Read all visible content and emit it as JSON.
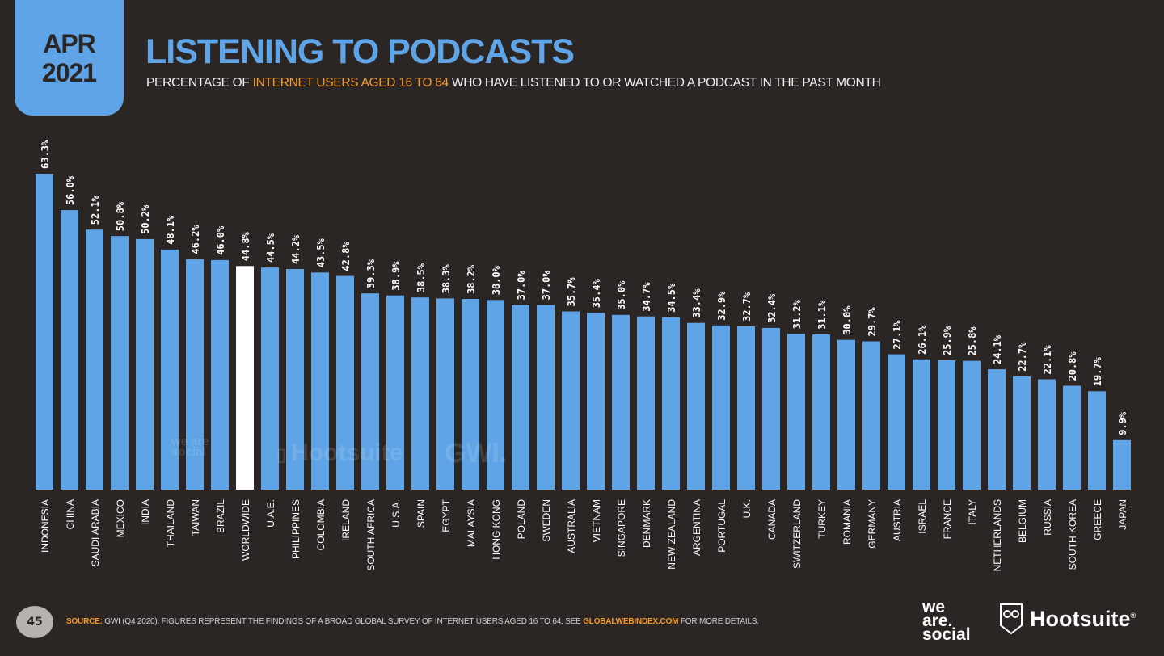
{
  "header": {
    "date_month": "APR",
    "date_year": "2021",
    "title": "LISTENING TO PODCASTS",
    "subtitle_pre": "PERCENTAGE OF ",
    "subtitle_highlight": "INTERNET USERS AGED 16 TO 64",
    "subtitle_post": " WHO HAVE LISTENED TO OR WATCHED A PODCAST IN THE PAST MONTH"
  },
  "chart_data": {
    "type": "bar",
    "title": "LISTENING TO PODCASTS",
    "subtitle": "PERCENTAGE OF INTERNET USERS AGED 16 TO 64 WHO HAVE LISTENED TO OR WATCHED A PODCAST IN THE PAST MONTH",
    "xlabel": "",
    "ylabel": "",
    "ylim": [
      0,
      63.3
    ],
    "value_suffix": "%",
    "highlight_category": "WORLDWIDE",
    "colors": {
      "bar": "#5fa4e6",
      "highlight": "#ffffff",
      "label": "#ffffff"
    },
    "categories": [
      "INDONESIA",
      "CHINA",
      "SAUDI ARABIA",
      "MEXICO",
      "INDIA",
      "THAILAND",
      "TAIWAN",
      "BRAZIL",
      "WORLDWIDE",
      "U.A.E.",
      "PHILIPPINES",
      "COLOMBIA",
      "IRELAND",
      "SOUTH AFRICA",
      "U.S.A.",
      "SPAIN",
      "EGYPT",
      "MALAYSIA",
      "HONG KONG",
      "POLAND",
      "SWEDEN",
      "AUSTRALIA",
      "VIETNAM",
      "SINGAPORE",
      "DENMARK",
      "NEW ZEALAND",
      "ARGENTINA",
      "PORTUGAL",
      "U.K.",
      "CANADA",
      "SWITZERLAND",
      "TURKEY",
      "ROMANIA",
      "GERMANY",
      "AUSTRIA",
      "ISRAEL",
      "FRANCE",
      "ITALY",
      "NETHERLANDS",
      "BELGIUM",
      "RUSSIA",
      "SOUTH KOREA",
      "GREECE",
      "JAPAN"
    ],
    "values": [
      63.3,
      56.0,
      52.1,
      50.8,
      50.2,
      48.1,
      46.2,
      46.0,
      44.8,
      44.5,
      44.2,
      43.5,
      42.8,
      39.3,
      38.9,
      38.5,
      38.3,
      38.2,
      38.0,
      37.0,
      37.0,
      35.7,
      35.4,
      35.0,
      34.7,
      34.5,
      33.4,
      32.9,
      32.7,
      32.4,
      31.2,
      31.1,
      30.0,
      29.7,
      27.1,
      26.1,
      25.9,
      25.8,
      24.1,
      22.7,
      22.1,
      20.8,
      19.7,
      9.9
    ],
    "value_labels": [
      "63.3%",
      "56.0%",
      "52.1%",
      "50.8%",
      "50.2%",
      "48.1%",
      "46.2%",
      "46.0%",
      "44.8%",
      "44.5%",
      "44.2%",
      "43.5%",
      "42.8%",
      "39.3%",
      "38.9%",
      "38.5%",
      "38.3%",
      "38.2%",
      "38.0%",
      "37.0%",
      "37.0%",
      "35.7%",
      "35.4%",
      "35.0%",
      "34.7%",
      "34.5%",
      "33.4%",
      "32.9%",
      "32.7%",
      "32.4%",
      "31.2%",
      "31.1%",
      "30.0%",
      "29.7%",
      "27.1%",
      "26.1%",
      "25.9%",
      "25.8%",
      "24.1%",
      "22.7%",
      "22.1%",
      "20.8%",
      "19.7%",
      "9.9%"
    ],
    "grid": false,
    "legend": "none"
  },
  "watermarks": {
    "we_are_social": "we are social",
    "hootsuite": "Hootsuite",
    "gwi": "GWI."
  },
  "footer": {
    "page_number": "45",
    "source_label": "SOURCE:",
    "source_text": " GWI (Q4 2020). FIGURES REPRESENT THE FINDINGS OF A BROAD GLOBAL SURVEY OF INTERNET USERS AGED 16 TO 64. SEE ",
    "source_link": "GLOBALWEBINDEX.COM",
    "source_tail": " FOR MORE DETAILS.",
    "logo_we": "we",
    "logo_are": "are.",
    "logo_social": "social",
    "logo_hootsuite": "Hootsuite",
    "logo_registered": "®"
  }
}
